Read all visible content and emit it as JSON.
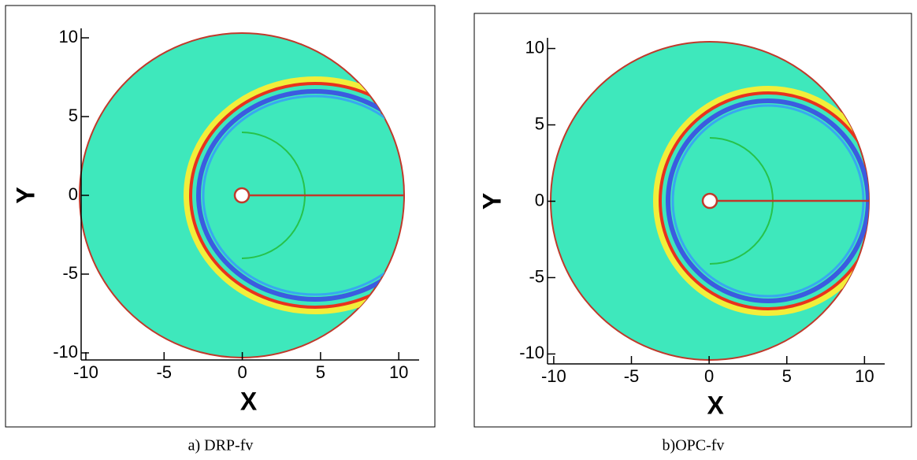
{
  "chart_data": [
    {
      "type": "contour",
      "caption": "a) DRP-fv",
      "xlabel": "X",
      "ylabel": "Y",
      "xlim": [
        -10.3,
        11.3
      ],
      "ylim": [
        -10.45,
        10.6
      ],
      "xticks": [
        -10,
        -5,
        0,
        5,
        10
      ],
      "yticks": [
        -10,
        -5,
        0,
        5,
        10
      ]
    },
    {
      "type": "contour",
      "caption": "b)OPC-fv",
      "xlabel": "X",
      "ylabel": "Y",
      "xlim": [
        -10.4,
        11.3
      ],
      "ylim": [
        -10.65,
        10.7
      ],
      "xticks": [
        -10,
        -5,
        0,
        5,
        10
      ],
      "yticks": [
        -10,
        -5,
        0,
        5,
        10
      ]
    }
  ]
}
